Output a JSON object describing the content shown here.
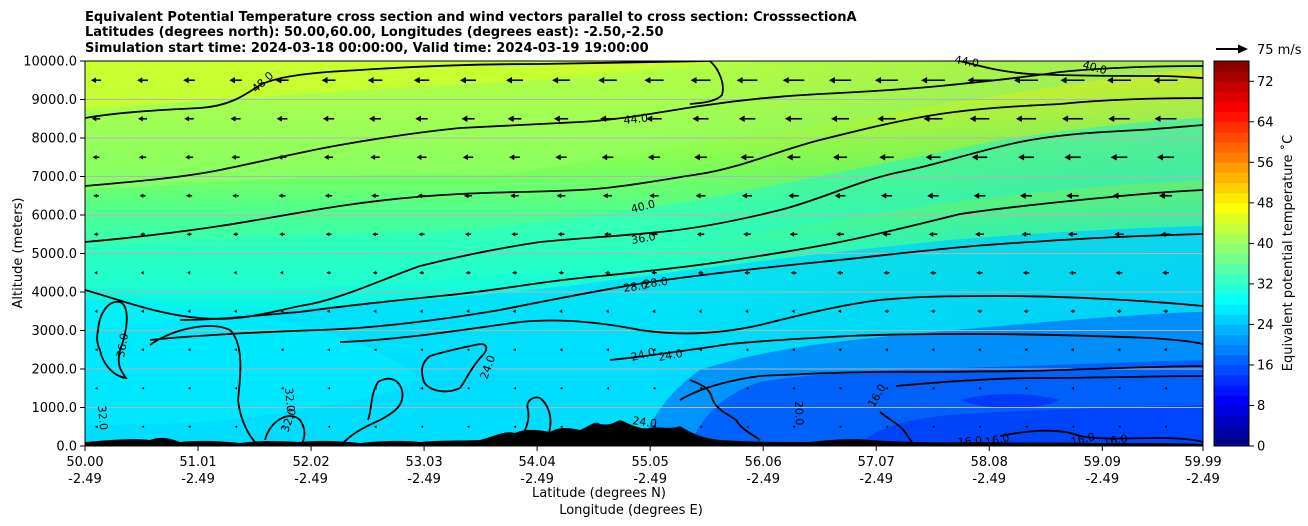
{
  "chart_data": {
    "type": "contour",
    "title_lines": [
      "Equivalent Potential Temperature cross section and wind vectors parallel to cross section: CrosssectionA",
      "Latitudes (degrees north): 50.00,60.00, Longitudes (degrees east): -2.50,-2.50",
      "Simulation start time: 2024-03-18 00:00:00, Valid time: 2024-03-19 19:00:00"
    ],
    "xlabel_lines": [
      "Latitude (degrees N)",
      "Longitude (degrees E)"
    ],
    "ylabel": "Altitude (meters)",
    "xlim": [
      50.0,
      59.99
    ],
    "ylim": [
      0,
      10000
    ],
    "x_ticks": [
      {
        "lat": "50.00",
        "lon": "-2.49"
      },
      {
        "lat": "51.01",
        "lon": "-2.49"
      },
      {
        "lat": "52.02",
        "lon": "-2.49"
      },
      {
        "lat": "53.03",
        "lon": "-2.49"
      },
      {
        "lat": "54.04",
        "lon": "-2.49"
      },
      {
        "lat": "55.05",
        "lon": "-2.49"
      },
      {
        "lat": "56.06",
        "lon": "-2.49"
      },
      {
        "lat": "57.07",
        "lon": "-2.49"
      },
      {
        "lat": "58.08",
        "lon": "-2.49"
      },
      {
        "lat": "59.09",
        "lon": "-2.49"
      },
      {
        "lat": "59.99",
        "lon": "-2.49"
      }
    ],
    "y_ticks": [
      "0.0",
      "1000.0",
      "2000.0",
      "3000.0",
      "4000.0",
      "5000.0",
      "6000.0",
      "7000.0",
      "8000.0",
      "9000.0",
      "10000.0"
    ],
    "colorbar": {
      "label": "Equivalent potential temperature ˚C",
      "min": 0,
      "max": 76,
      "step": 2,
      "ticks": [
        "0",
        "8",
        "16",
        "24",
        "32",
        "40",
        "48",
        "56",
        "64",
        "72"
      ]
    },
    "quiver_key": "75 m/s",
    "contour_labels": [
      "48.0",
      "44.0",
      "40.0",
      "36.0",
      "28.0",
      "28.0",
      "24.0",
      "24.0",
      "24.0",
      "24.0",
      "36.0",
      "32.0",
      "32.0",
      "32.0",
      "20.0",
      "16.0",
      "16.0",
      "16.0",
      "16.0",
      "16.0",
      "44.0",
      "40.0"
    ],
    "colors": {
      "very_cold": "#00008b",
      "cold": "#0000ff",
      "cool": "#0064ff",
      "cyan": "#00e6ff",
      "mint": "#46ffb4",
      "green": "#8cff6e",
      "yellow": "#ffff00",
      "orange": "#ff8c00",
      "red": "#ff0000",
      "dark_red": "#800000",
      "terrain": "#000000"
    }
  }
}
